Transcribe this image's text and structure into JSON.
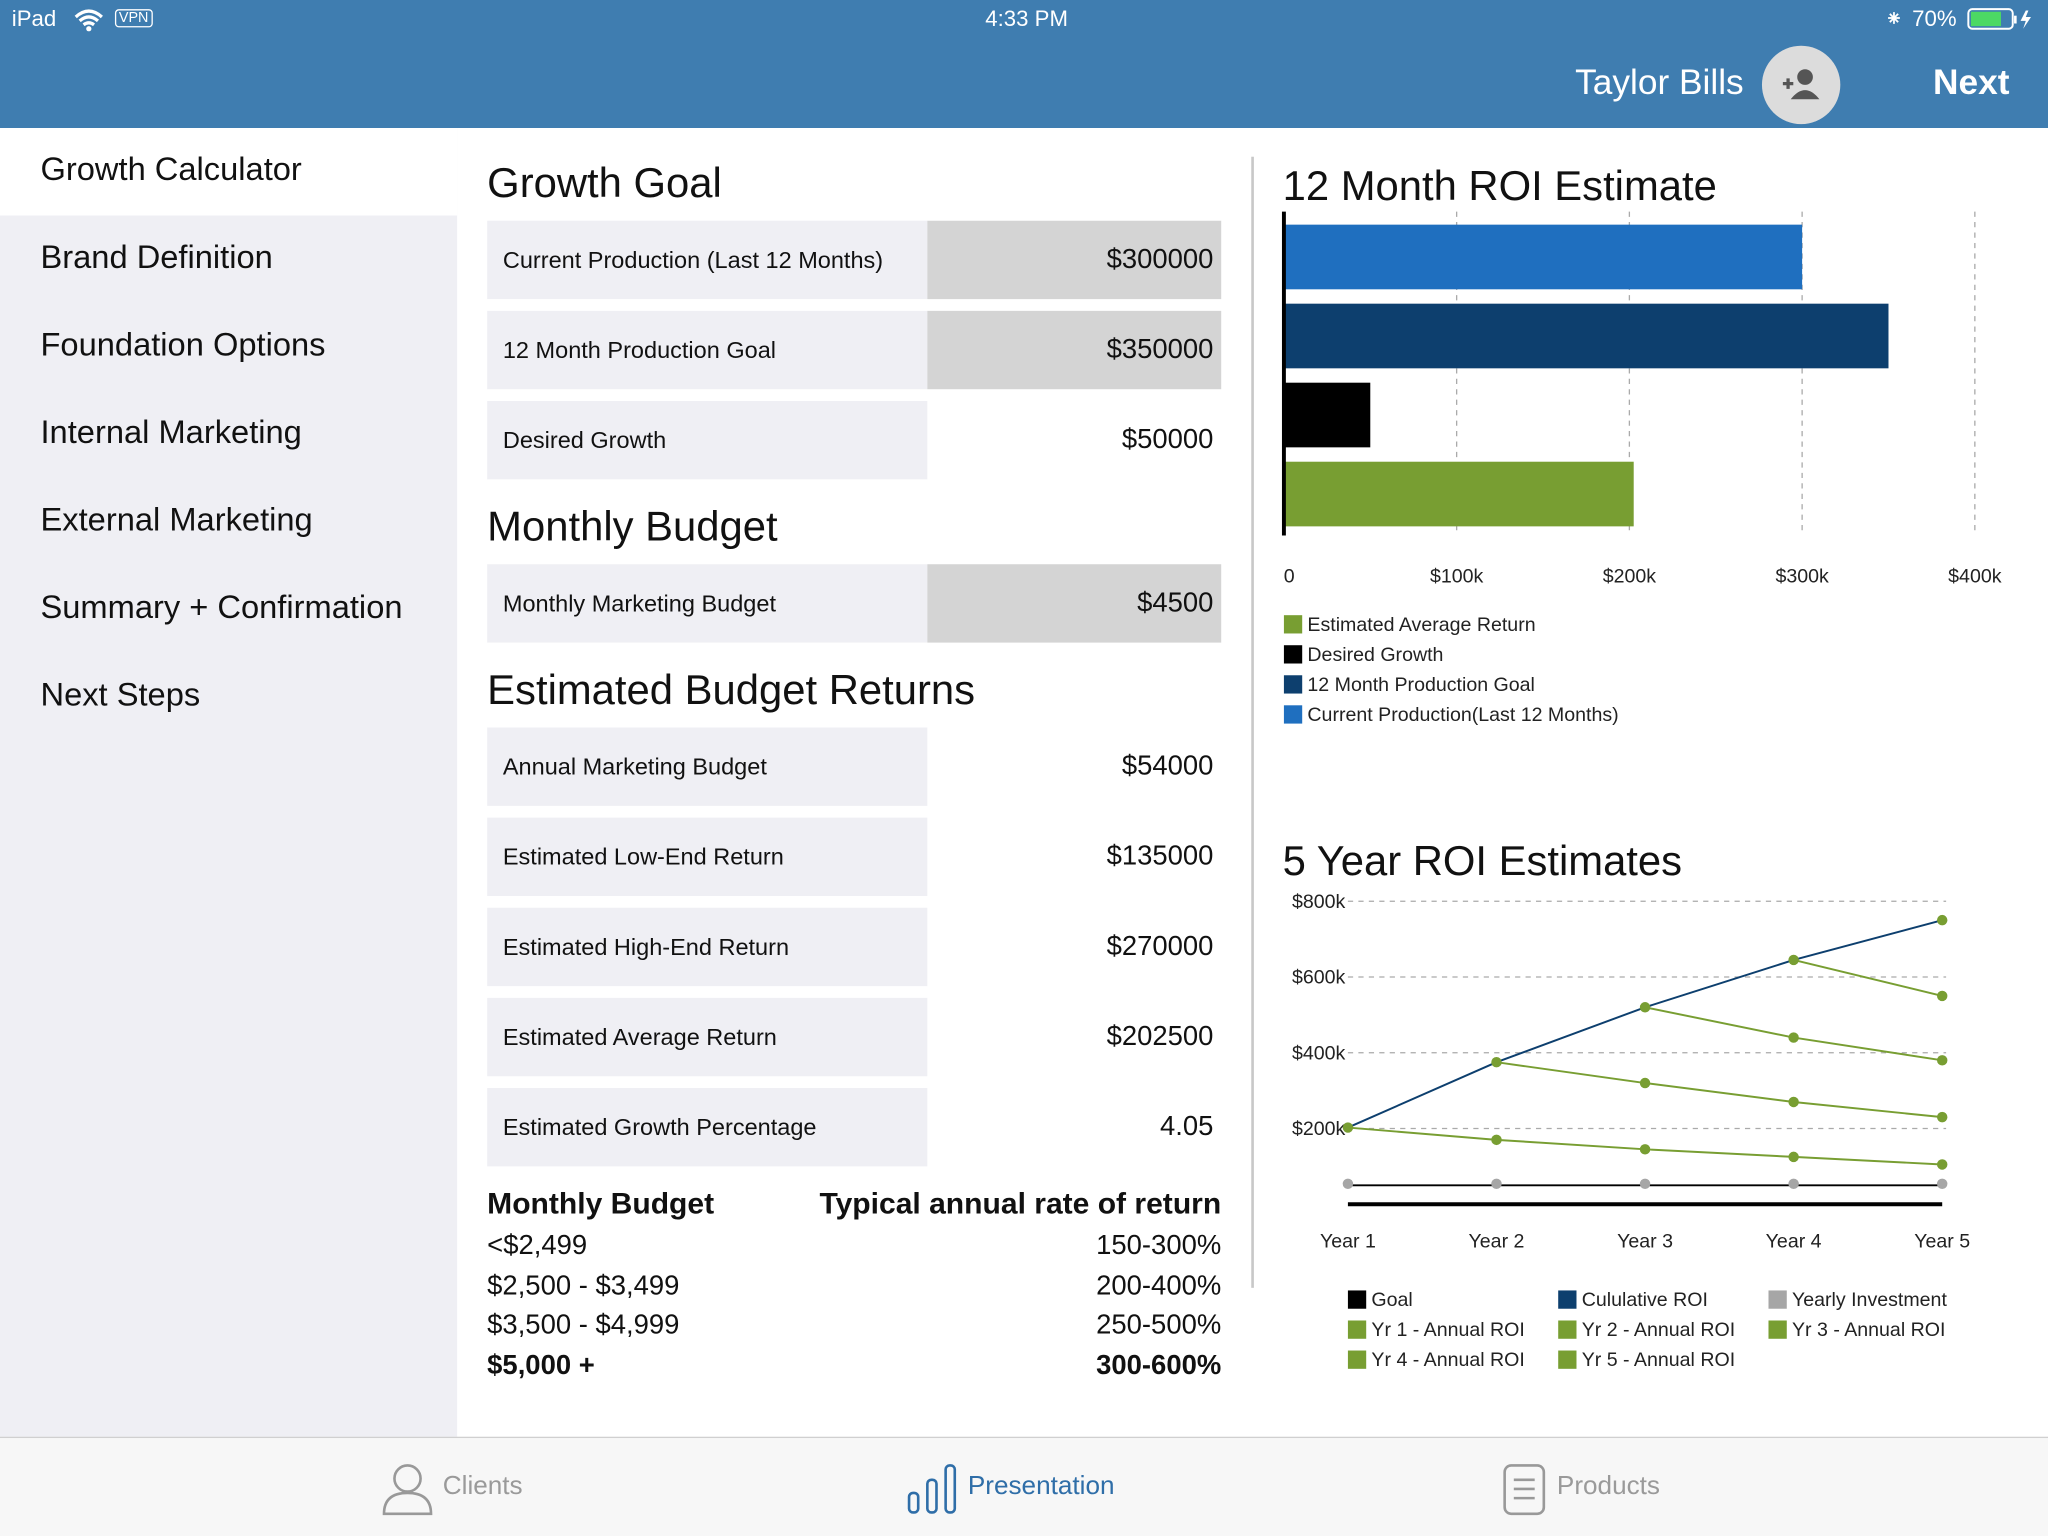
{
  "status_bar": {
    "device": "iPad",
    "vpn": "VPN",
    "time": "4:33 PM",
    "battery": "70%"
  },
  "header": {
    "user": "Taylor Bills",
    "next": "Next"
  },
  "sidebar": {
    "items": [
      "Growth Calculator",
      "Brand Definition",
      "Foundation Options",
      "Internal Marketing",
      "External Marketing",
      "Summary + Confirmation",
      "Next Steps"
    ]
  },
  "growth_goal": {
    "title": "Growth Goal",
    "rows": [
      {
        "label": "Current Production (Last 12 Months)",
        "value": "$300000"
      },
      {
        "label": "12 Month Production Goal",
        "value": "$350000"
      },
      {
        "label": "Desired Growth",
        "value": "$50000"
      }
    ]
  },
  "monthly_budget": {
    "title": "Monthly Budget",
    "rows": [
      {
        "label": "Monthly Marketing Budget",
        "value": "$4500"
      }
    ]
  },
  "estimated_returns": {
    "title": "Estimated Budget Returns",
    "rows": [
      {
        "label": "Annual Marketing Budget",
        "value": "$54000"
      },
      {
        "label": "Estimated Low-End Return",
        "value": "$135000"
      },
      {
        "label": "Estimated High-End Return",
        "value": "$270000"
      },
      {
        "label": "Estimated Average Return",
        "value": "$202500"
      },
      {
        "label": "Estimated Growth Percentage",
        "value": "4.05"
      }
    ]
  },
  "rate_table": {
    "headers": [
      "Monthly Budget",
      "Typical annual rate of return"
    ],
    "rows": [
      [
        "<$2,499",
        "150-300%"
      ],
      [
        "$2,500 - $3,499",
        "200-400%"
      ],
      [
        "$3,500 - $4,999",
        "250-500%"
      ],
      [
        "$5,000 +",
        "300-600%"
      ]
    ]
  },
  "tab_bar": {
    "tabs": [
      "Clients",
      "Presentation",
      "Products"
    ]
  },
  "chart_data": [
    {
      "type": "bar",
      "title": "12 Month ROI Estimate",
      "orientation": "horizontal",
      "series": [
        {
          "name": "Estimated Average Return",
          "color": "#789e32",
          "values": [
            202500
          ]
        },
        {
          "name": "Desired Growth",
          "color": "#000000",
          "values": [
            50000
          ]
        },
        {
          "name": "12 Month Production Goal",
          "color": "#0d3f6e",
          "values": [
            350000
          ]
        },
        {
          "name": "Current Production(Last 12 Months)",
          "color": "#1f6fbf",
          "values": [
            300000
          ]
        }
      ],
      "xlim": [
        0,
        400000
      ],
      "xticks": [
        0,
        {
          "value": 100000,
          "label": "$100k"
        },
        {
          "value": 200000,
          "label": "$200k"
        },
        {
          "value": 300000,
          "label": "$300k"
        },
        {
          "value": 400000,
          "label": "$400k"
        }
      ],
      "grid": true,
      "legend": "bottom"
    },
    {
      "type": "line",
      "title": "5 Year ROI Estimates",
      "categories": [
        "Year 1",
        "Year 2",
        "Year 3",
        "Year 4",
        "Year 5"
      ],
      "series": [
        {
          "name": "Goal",
          "color": "#000000",
          "marker": false,
          "values": [
            50000,
            50000,
            50000,
            50000,
            50000
          ]
        },
        {
          "name": "Cululative ROI",
          "color": "#0d3f6e",
          "marker": false,
          "values": [
            202500,
            375000,
            520000,
            645000,
            750000
          ]
        },
        {
          "name": "Yearly Investment",
          "color": "#a6a6a6",
          "line": false,
          "values": [
            54000,
            54000,
            54000,
            54000,
            54000
          ]
        },
        {
          "name": "Yr 1 - Annual ROI",
          "color": "#789e32",
          "values": [
            202500,
            170000,
            145000,
            125000,
            105000
          ]
        },
        {
          "name": "Yr 2 - Annual ROI",
          "color": "#789e32",
          "values": [
            null,
            375000,
            320000,
            270000,
            230000
          ]
        },
        {
          "name": "Yr 3 - Annual ROI",
          "color": "#789e32",
          "values": [
            null,
            null,
            520000,
            440000,
            380000
          ]
        },
        {
          "name": "Yr 4 - Annual ROI",
          "color": "#789e32",
          "values": [
            null,
            null,
            null,
            645000,
            550000
          ]
        },
        {
          "name": "Yr 5 - Annual ROI",
          "color": "#789e32",
          "values": [
            null,
            null,
            null,
            null,
            750000
          ]
        }
      ],
      "ylim": [
        0,
        800000
      ],
      "yticks": [
        {
          "value": 200000,
          "label": "$200k"
        },
        {
          "value": 400000,
          "label": "$400k"
        },
        {
          "value": 600000,
          "label": "$600k"
        },
        {
          "value": 800000,
          "label": "$800k"
        }
      ],
      "grid": true,
      "legend": "bottom"
    }
  ]
}
